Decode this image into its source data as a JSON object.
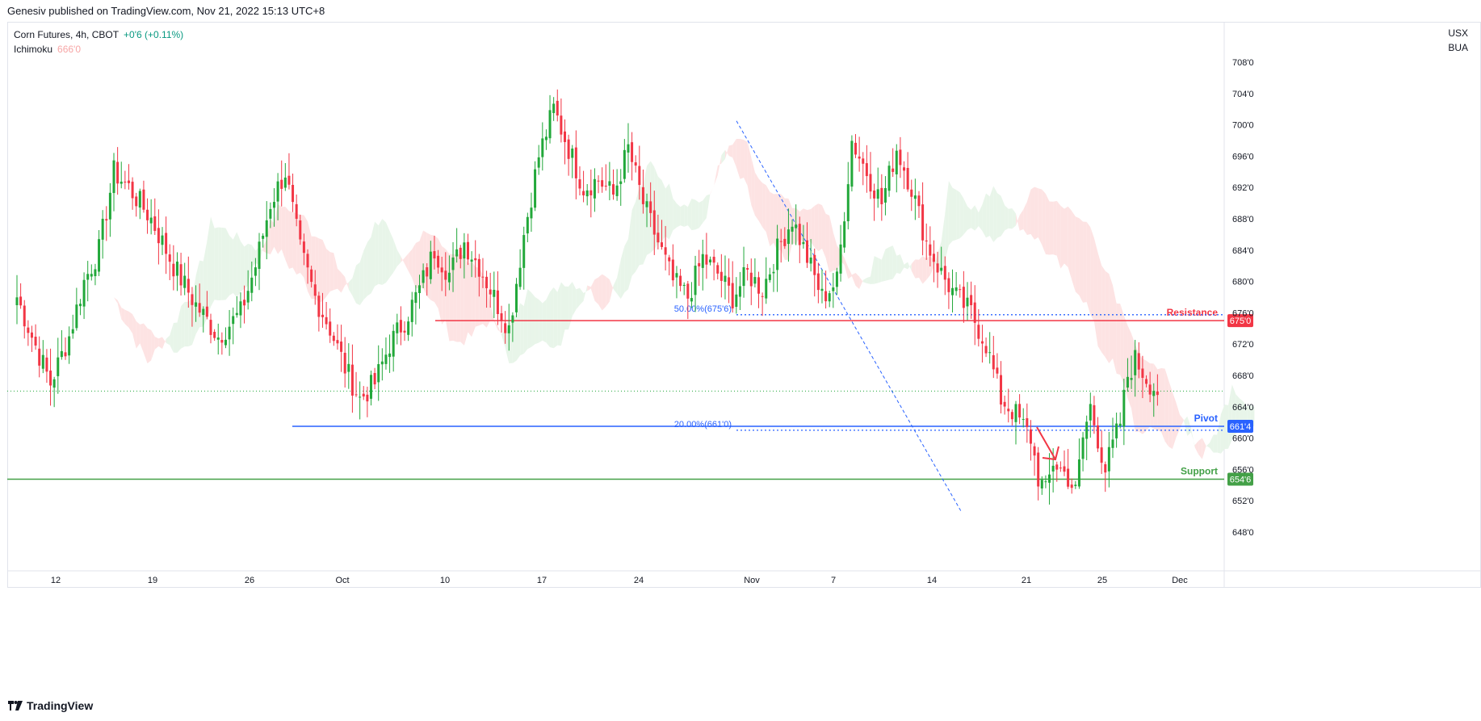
{
  "header": {
    "published": "Genesiv published on TradingView.com, Nov 21, 2022 15:13 UTC+8"
  },
  "legend": {
    "symbol": "Corn Futures, 4h, CBOT",
    "change": "+0'6 (+0.11%)",
    "indicator": "Ichimoku",
    "indicator_value": "666'0"
  },
  "axis": {
    "unit_top": "USX",
    "unit_bottom": "BUA"
  },
  "footer": {
    "brand": "TradingView"
  },
  "colors": {
    "up": "#22a83a",
    "down": "#f23645",
    "resistance": "#f23645",
    "pivot": "#2962ff",
    "support": "#43a047",
    "cloud_bull": "#e8f5e9",
    "cloud_bear": "#fde3e3"
  },
  "chart_data": {
    "type": "candlestick",
    "ylim": [
      646,
      711
    ],
    "y_ticks": [
      "708'0",
      "704'0",
      "700'0",
      "696'0",
      "692'0",
      "688'0",
      "684'0",
      "680'0",
      "676'0",
      "672'0",
      "668'0",
      "664'0",
      "660'0",
      "656'0",
      "652'0",
      "648'0"
    ],
    "x_ticks": [
      "12",
      "19",
      "26",
      "Oct",
      "10",
      "17",
      "24",
      "Nov",
      "7",
      "14",
      "21",
      "25",
      "Dec"
    ],
    "levels": [
      {
        "name": "Resistance",
        "value": 675.0,
        "label": "675'0"
      },
      {
        "name": "Pivot",
        "value": 661.5,
        "label": "661'4"
      },
      {
        "name": "Support",
        "value": 654.75,
        "label": "654'6"
      }
    ],
    "fib": [
      {
        "label": "50.00%(675'6)",
        "value": 675.75
      },
      {
        "label": "20.00%(661'0)",
        "value": 661.0
      }
    ],
    "last_price": 666.0,
    "waypoints": [
      [
        0,
        678
      ],
      [
        4,
        673
      ],
      [
        9,
        667
      ],
      [
        14,
        673
      ],
      [
        18,
        680
      ],
      [
        22,
        684
      ],
      [
        26,
        694
      ],
      [
        30,
        692
      ],
      [
        36,
        688
      ],
      [
        42,
        682
      ],
      [
        48,
        677
      ],
      [
        54,
        673
      ],
      [
        60,
        676
      ],
      [
        64,
        682
      ],
      [
        68,
        690
      ],
      [
        72,
        694
      ],
      [
        76,
        684
      ],
      [
        80,
        678
      ],
      [
        84,
        674
      ],
      [
        88,
        669
      ],
      [
        92,
        665
      ],
      [
        96,
        667
      ],
      [
        100,
        672
      ],
      [
        104,
        675
      ],
      [
        108,
        679
      ],
      [
        112,
        684
      ],
      [
        116,
        681
      ],
      [
        120,
        685
      ],
      [
        124,
        682
      ],
      [
        128,
        678
      ],
      [
        132,
        674
      ],
      [
        136,
        686
      ],
      [
        140,
        696
      ],
      [
        144,
        702
      ],
      [
        148,
        697
      ],
      [
        152,
        692
      ],
      [
        156,
        693
      ],
      [
        160,
        691
      ],
      [
        164,
        697
      ],
      [
        168,
        690
      ],
      [
        172,
        685
      ],
      [
        176,
        680
      ],
      [
        180,
        678
      ],
      [
        184,
        683
      ],
      [
        188,
        681
      ],
      [
        192,
        678
      ],
      [
        196,
        681
      ],
      [
        200,
        679
      ],
      [
        204,
        684
      ],
      [
        208,
        688
      ],
      [
        212,
        683
      ],
      [
        216,
        678
      ],
      [
        220,
        680
      ],
      [
        224,
        698
      ],
      [
        228,
        694
      ],
      [
        232,
        690
      ],
      [
        236,
        697
      ],
      [
        240,
        692
      ],
      [
        244,
        685
      ],
      [
        248,
        681
      ],
      [
        252,
        678
      ],
      [
        256,
        676
      ],
      [
        260,
        672
      ],
      [
        264,
        665
      ],
      [
        268,
        663
      ],
      [
        272,
        660
      ],
      [
        274,
        655
      ],
      [
        276,
        653
      ],
      [
        278,
        657
      ],
      [
        282,
        655
      ],
      [
        284,
        653
      ],
      [
        286,
        660
      ],
      [
        288,
        664
      ],
      [
        292,
        656
      ],
      [
        296,
        662
      ],
      [
        298,
        668
      ],
      [
        300,
        670
      ],
      [
        304,
        667
      ],
      [
        306,
        666
      ]
    ]
  }
}
